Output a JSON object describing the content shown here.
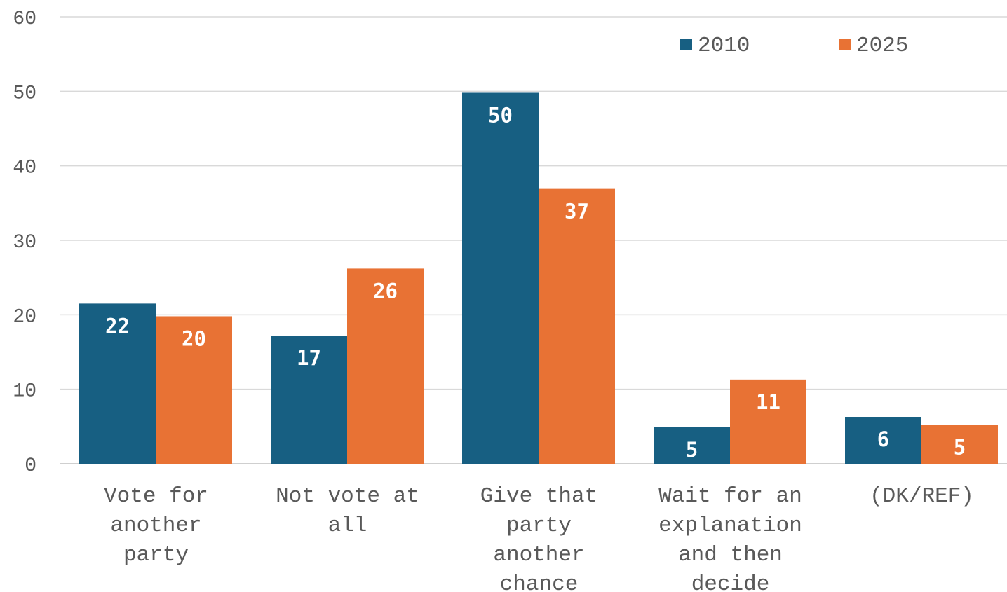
{
  "chart_data": {
    "type": "bar",
    "title": "",
    "xlabel": "",
    "ylabel": "",
    "ylim": [
      0,
      60
    ],
    "yticks": [
      0,
      10,
      20,
      30,
      40,
      50,
      60
    ],
    "grid": true,
    "legend_position": "top-right",
    "categories": [
      [
        "Vote for",
        "another",
        "party"
      ],
      [
        "Not vote at",
        "all"
      ],
      [
        "Give that",
        "party",
        "another",
        "chance"
      ],
      [
        "Wait for an",
        "explanation",
        "and then",
        "decide"
      ],
      [
        "(DK/REF)"
      ]
    ],
    "series": [
      {
        "name": "2010",
        "color": "#175f82",
        "values": [
          21.5,
          17.2,
          49.8,
          4.9,
          6.3
        ],
        "labels": [
          "22",
          "17",
          "50",
          "5",
          "6"
        ]
      },
      {
        "name": "2025",
        "color": "#e87234",
        "values": [
          19.8,
          26.2,
          36.9,
          11.3,
          5.2
        ],
        "labels": [
          "20",
          "26",
          "37",
          "11",
          "5"
        ]
      }
    ]
  }
}
